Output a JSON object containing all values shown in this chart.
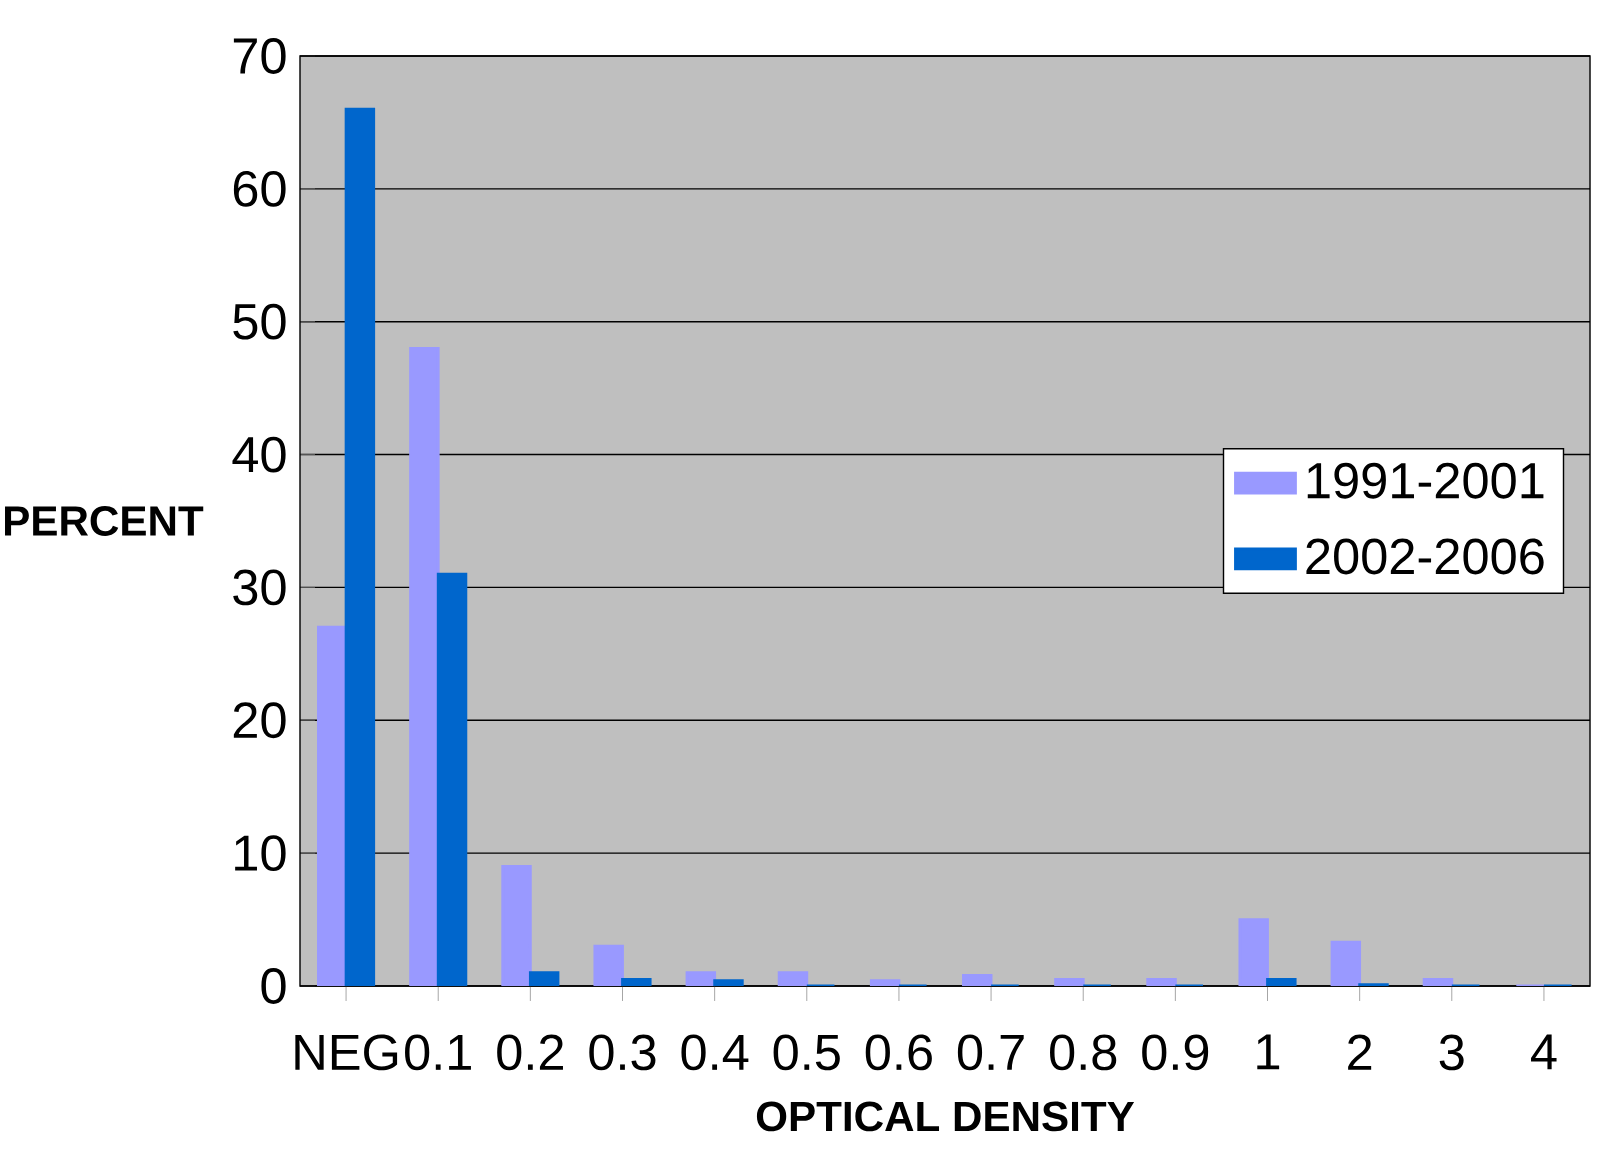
{
  "chart_data": {
    "type": "bar",
    "xlabel": "OPTICAL DENSITY",
    "ylabel": "PERCENT",
    "categories": [
      "NEG",
      "0.1",
      "0.2",
      "0.3",
      "0.4",
      "0.5",
      "0.6",
      "0.7",
      "0.8",
      "0.9",
      "1",
      "2",
      "3",
      "4"
    ],
    "series": [
      {
        "name": "1991-2001",
        "color": "#9999ff",
        "values": [
          27,
          48,
          9,
          3,
          1,
          1,
          0.4,
          0.8,
          0.5,
          0.5,
          5,
          3.3,
          0.5,
          0
        ]
      },
      {
        "name": "2002-2006",
        "color": "#0066cc",
        "values": [
          66,
          31,
          1,
          0.5,
          0.4,
          0,
          0,
          0,
          0,
          0,
          0.5,
          0.1,
          0,
          0
        ]
      }
    ],
    "ylim": [
      0,
      70
    ],
    "yticks": [
      0,
      10,
      20,
      30,
      40,
      50,
      60,
      70
    ],
    "grid": "y",
    "legend": "right"
  }
}
